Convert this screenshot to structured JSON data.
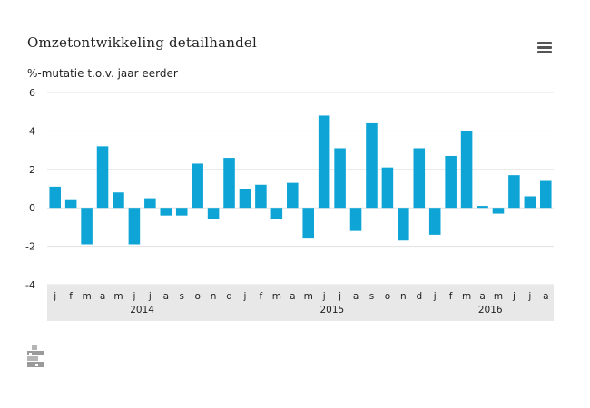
{
  "title": "Omzetontwikkeling detailhandel",
  "subtitle": "%-mutatie t.o.v. jaar eerder",
  "menu_icon": "hamburger-menu-icon",
  "logo_icon": "cbs-logo-icon",
  "colors": {
    "bar": "#0ea5d6",
    "band": "#e8e8e8",
    "grid": "#e3e3e3",
    "axis_text": "#222222"
  },
  "chart_data": {
    "type": "bar",
    "title": "Omzetontwikkeling detailhandel",
    "ylabel": "%-mutatie t.o.v. jaar eerder",
    "ylim": [
      -4,
      6
    ],
    "yticks": [
      6,
      4,
      2,
      0,
      -2,
      -4
    ],
    "grid": true,
    "categories": [
      "j",
      "f",
      "m",
      "a",
      "m",
      "j",
      "j",
      "a",
      "s",
      "o",
      "n",
      "d",
      "j",
      "f",
      "m",
      "a",
      "m",
      "j",
      "j",
      "a",
      "s",
      "o",
      "n",
      "d",
      "j",
      "f",
      "m",
      "a",
      "m",
      "j",
      "j",
      "a"
    ],
    "values": [
      1.1,
      0.4,
      -1.9,
      3.2,
      0.8,
      -1.9,
      0.5,
      -0.4,
      -0.4,
      2.3,
      -0.6,
      2.6,
      1.0,
      1.2,
      -0.6,
      1.3,
      -1.6,
      4.8,
      3.1,
      -1.2,
      4.4,
      2.1,
      -1.7,
      3.1,
      -1.4,
      2.7,
      4.0,
      0.1,
      -0.3,
      1.7,
      0.6,
      1.4
    ],
    "years": [
      {
        "label": "2014",
        "start": 0,
        "end": 11
      },
      {
        "label": "2015",
        "start": 12,
        "end": 23
      },
      {
        "label": "2016",
        "start": 24,
        "end": 31
      }
    ]
  }
}
